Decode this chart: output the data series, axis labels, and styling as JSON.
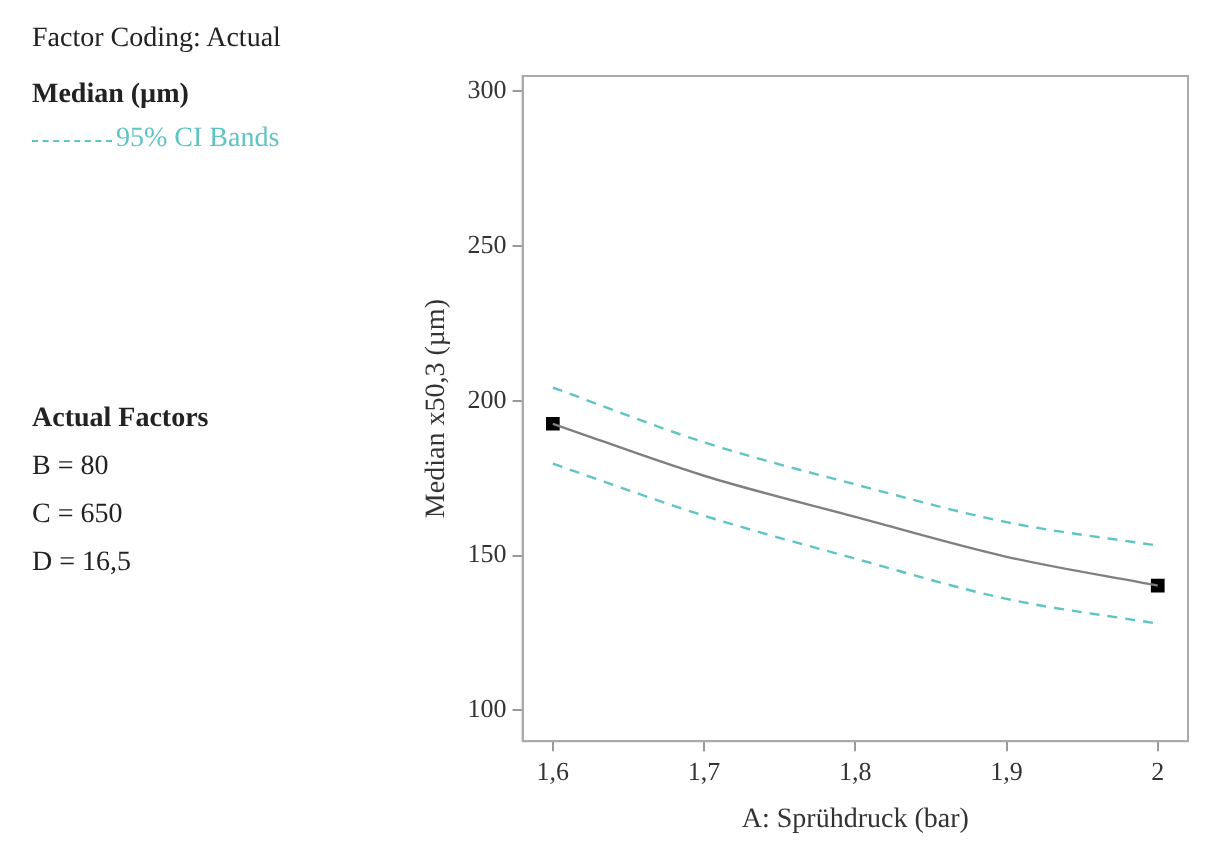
{
  "chart_data": {
    "type": "line",
    "xlabel": "A: Sprühdruck (bar)",
    "ylabel": "Median x50,3 (µm)",
    "legend_title": "Median (µm)",
    "legend": "left",
    "annotations": [
      "Factor Coding: Actual",
      "Actual Factors",
      "B = 80",
      "C = 650",
      "D = 16,5"
    ],
    "xlim": [
      1.58,
      2.02
    ],
    "ylim": [
      90,
      305
    ],
    "xticks": [
      {
        "value": 1.6,
        "label": "1,6"
      },
      {
        "value": 1.7,
        "label": "1,7"
      },
      {
        "value": 1.8,
        "label": "1,8"
      },
      {
        "value": 1.9,
        "label": "1,9"
      },
      {
        "value": 2,
        "label": "2"
      }
    ],
    "yticks": [
      100,
      150,
      200,
      250,
      300
    ],
    "grid": false,
    "series": [
      {
        "color": "#7f7f7f",
        "marker": "none",
        "line_style": "solid",
        "x": [
          1.6,
          1.7,
          1.8,
          1.9,
          2
        ],
        "values": [
          192.6,
          175.8,
          162.5,
          149.6,
          140.3
        ]
      },
      {
        "name": "95% CI Bands",
        "color": "#5fc4c4",
        "marker": "none",
        "line_style": "dashed",
        "x": [
          1.6,
          1.7,
          1.8,
          1.9,
          2
        ],
        "values": [
          204.3,
          186.6,
          173,
          160.8,
          153.2
        ]
      },
      {
        "color": "#5fc4c4",
        "marker": "none",
        "line_style": "dashed",
        "x": [
          1.6,
          1.7,
          1.8,
          1.9,
          2
        ],
        "values": [
          179.7,
          162.9,
          149,
          136,
          128
        ]
      },
      {
        "type": "scatter",
        "color": "#000000",
        "marker": "square",
        "x": [
          1.6,
          2
        ],
        "values": [
          192.6,
          140.3
        ]
      }
    ]
  }
}
